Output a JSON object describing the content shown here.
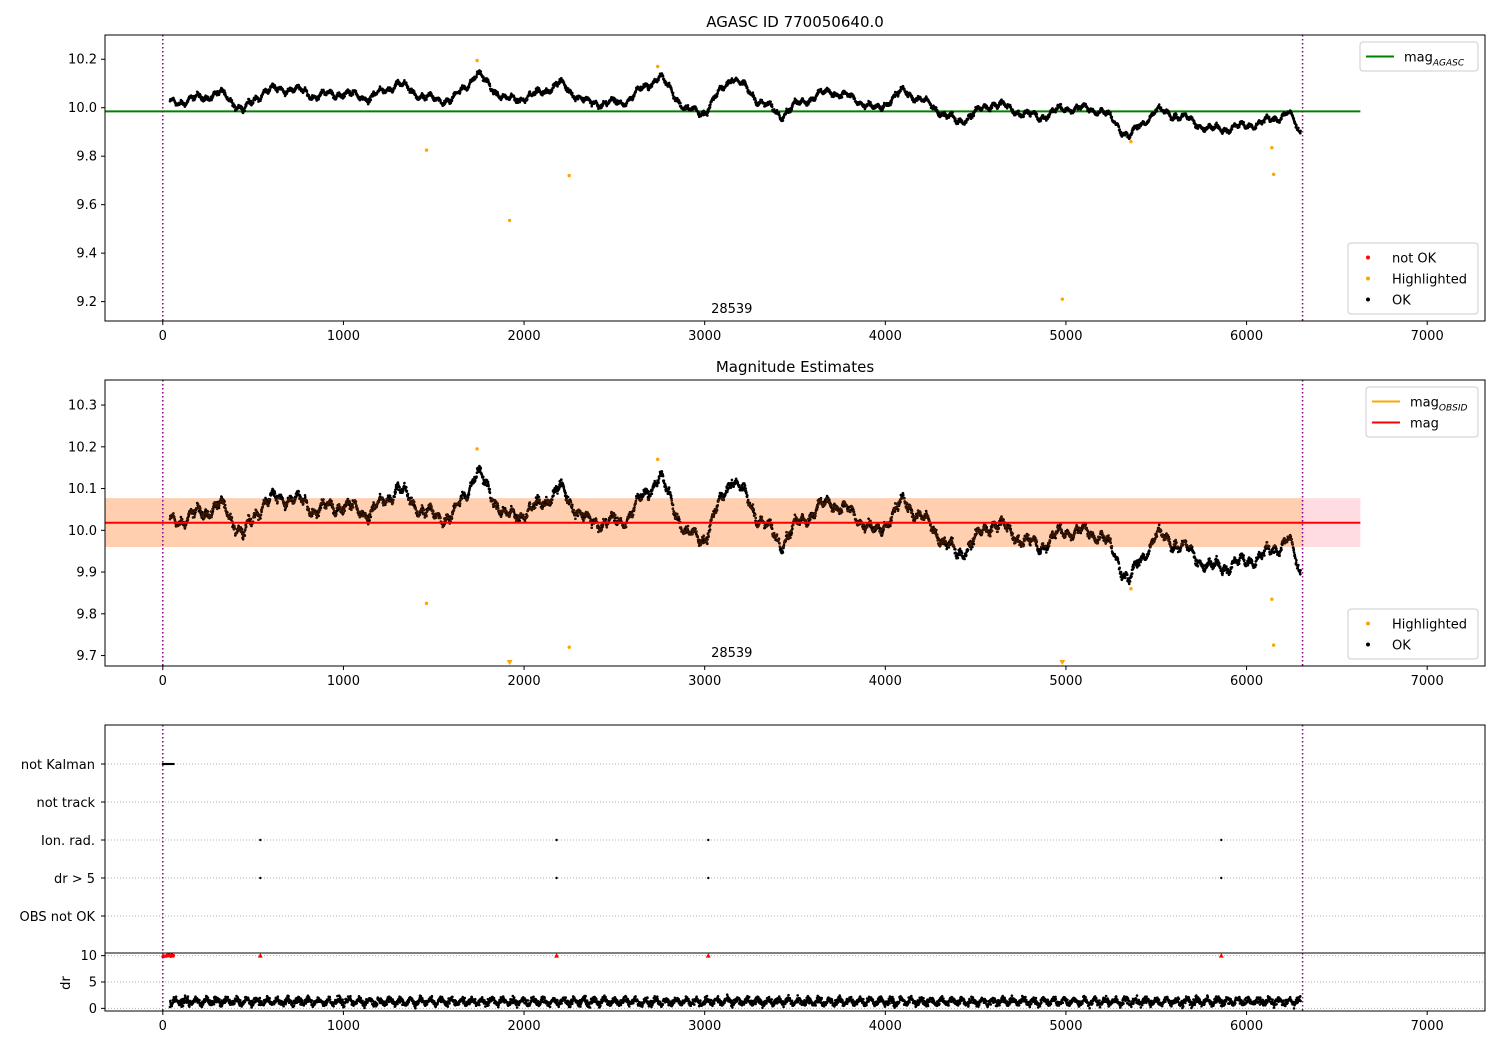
{
  "chart_data": [
    {
      "type": "scatter",
      "title": "AGASC ID 770050640.0",
      "xlim": [
        -320,
        7320
      ],
      "ylim": [
        9.12,
        10.3
      ],
      "xticks": [
        "0",
        "1000",
        "2000",
        "3000",
        "4000",
        "5000",
        "6000",
        "7000"
      ],
      "yticks": [
        "9.2",
        "9.4",
        "9.6",
        "9.8",
        "10.0",
        "10.2"
      ],
      "obs_label": "28539",
      "obs_label_x": 3150,
      "obs_bounds": [
        0,
        6310
      ],
      "reference_line": {
        "name": "mag",
        "subscript": "AGASC",
        "value": 9.985,
        "x_range": [
          -320,
          6630
        ],
        "color": "#008000"
      },
      "legend_top": {
        "position": "top-right",
        "entries": [
          {
            "label": "mag",
            "subscript": "AGASC",
            "color": "#008000",
            "kind": "line"
          }
        ]
      },
      "legend_bottom": {
        "position": "bottom-right",
        "entries": [
          {
            "label": "not OK",
            "color": "#ff0000",
            "kind": "dot"
          },
          {
            "label": "Highlighted",
            "color": "#ffa500",
            "kind": "dot"
          },
          {
            "label": "OK",
            "color": "#000000",
            "kind": "dot"
          }
        ]
      },
      "highlighted": {
        "x": [
          1460,
          1740,
          1920,
          2250,
          2740,
          4980,
          5360,
          6140,
          6150
        ],
        "y": [
          9.825,
          10.195,
          9.535,
          9.72,
          10.17,
          9.21,
          9.86,
          9.835,
          9.725
        ]
      },
      "ok_series_trend": {
        "x": [
          60,
          200,
          320,
          450,
          560,
          700,
          850,
          1000,
          1150,
          1300,
          1450,
          1600,
          1740,
          1900,
          2050,
          2200,
          2350,
          2550,
          2750,
          2900,
          3000,
          3150,
          3300,
          3420,
          3550,
          3700,
          3850,
          3950,
          4100,
          4250,
          4400,
          4600,
          4750,
          4850,
          5000,
          5200,
          5350,
          5500,
          5650,
          5800,
          5950,
          6100,
          6230,
          6310
        ],
        "y": [
          10.02,
          10.04,
          10.06,
          9.99,
          10.07,
          10.08,
          10.05,
          10.06,
          10.04,
          10.1,
          10.04,
          10.03,
          10.14,
          10.03,
          10.05,
          10.1,
          10.02,
          10.02,
          10.13,
          9.99,
          9.98,
          10.13,
          10.03,
          9.97,
          10.03,
          10.07,
          10.03,
          9.99,
          10.07,
          10.01,
          9.94,
          10.02,
          9.98,
          9.96,
          10.0,
          9.99,
          9.88,
          9.99,
          9.96,
          9.91,
          9.92,
          9.94,
          9.98,
          9.88
        ]
      }
    },
    {
      "type": "scatter",
      "title": "Magnitude Estimates",
      "xlim": [
        -320,
        7320
      ],
      "ylim": [
        9.675,
        10.36
      ],
      "xticks": [
        "0",
        "1000",
        "2000",
        "3000",
        "4000",
        "5000",
        "6000",
        "7000"
      ],
      "yticks": [
        "9.7",
        "9.8",
        "9.9",
        "10.0",
        "10.1",
        "10.2",
        "10.3"
      ],
      "obs_label": "28539",
      "obs_label_x": 3150,
      "obs_bounds": [
        0,
        6310
      ],
      "mag_line": {
        "name": "mag",
        "value": 10.018,
        "color": "#ff0000",
        "x_range": [
          -320,
          6630
        ],
        "band": [
          9.96,
          10.077
        ]
      },
      "obsid_band": {
        "name": "mag",
        "subscript": "OBSID",
        "x_range": [
          -320,
          6310
        ],
        "band": [
          9.96,
          10.077
        ],
        "color": "#ffa500"
      },
      "legend_top": {
        "position": "top-right",
        "entries": [
          {
            "label": "mag",
            "subscript": "OBSID",
            "color": "#ffa500",
            "kind": "line"
          },
          {
            "label": "mag",
            "color": "#ff0000",
            "kind": "line"
          }
        ]
      },
      "legend_bottom": {
        "position": "bottom-right",
        "entries": [
          {
            "label": "Highlighted",
            "color": "#ffa500",
            "kind": "dot"
          },
          {
            "label": "OK",
            "color": "#000000",
            "kind": "dot"
          }
        ]
      },
      "highlighted": {
        "x": [
          1460,
          1740,
          2250,
          2740,
          5360,
          6140,
          6150
        ],
        "y": [
          9.825,
          10.195,
          9.72,
          10.17,
          9.86,
          9.835,
          9.725
        ]
      },
      "clipped_low": {
        "x": [
          1920,
          4980
        ]
      }
    },
    {
      "type": "scatter",
      "title": "",
      "xlim": [
        -320,
        7320
      ],
      "obs_bounds": [
        0,
        6310
      ],
      "flag_rows": [
        "not Kalman",
        "not track",
        "Ion. rad.",
        "dr > 5",
        "OBS not OK"
      ],
      "flags": {
        "not Kalman": {
          "x_range": [
            0,
            60
          ]
        },
        "not track": {
          "x": []
        },
        "Ion. rad.": {
          "x": [
            540,
            2180,
            3020,
            5860
          ]
        },
        "dr > 5": {
          "x": [
            540,
            2180,
            3020,
            5860
          ]
        }
      }
    },
    {
      "type": "scatter",
      "title": "",
      "xlim": [
        -320,
        7320
      ],
      "ylim": [
        -0.5,
        10.5
      ],
      "ylabel": "dr",
      "xticks": [
        "0",
        "1000",
        "2000",
        "3000",
        "4000",
        "5000",
        "6000",
        "7000"
      ],
      "yticks": [
        "0",
        "5",
        "10"
      ],
      "obs_bounds": [
        0,
        6310
      ],
      "dr_high_points": {
        "x": [
          540,
          2180,
          3020,
          5860
        ],
        "y": [
          10,
          10,
          10,
          10
        ]
      }
    }
  ]
}
